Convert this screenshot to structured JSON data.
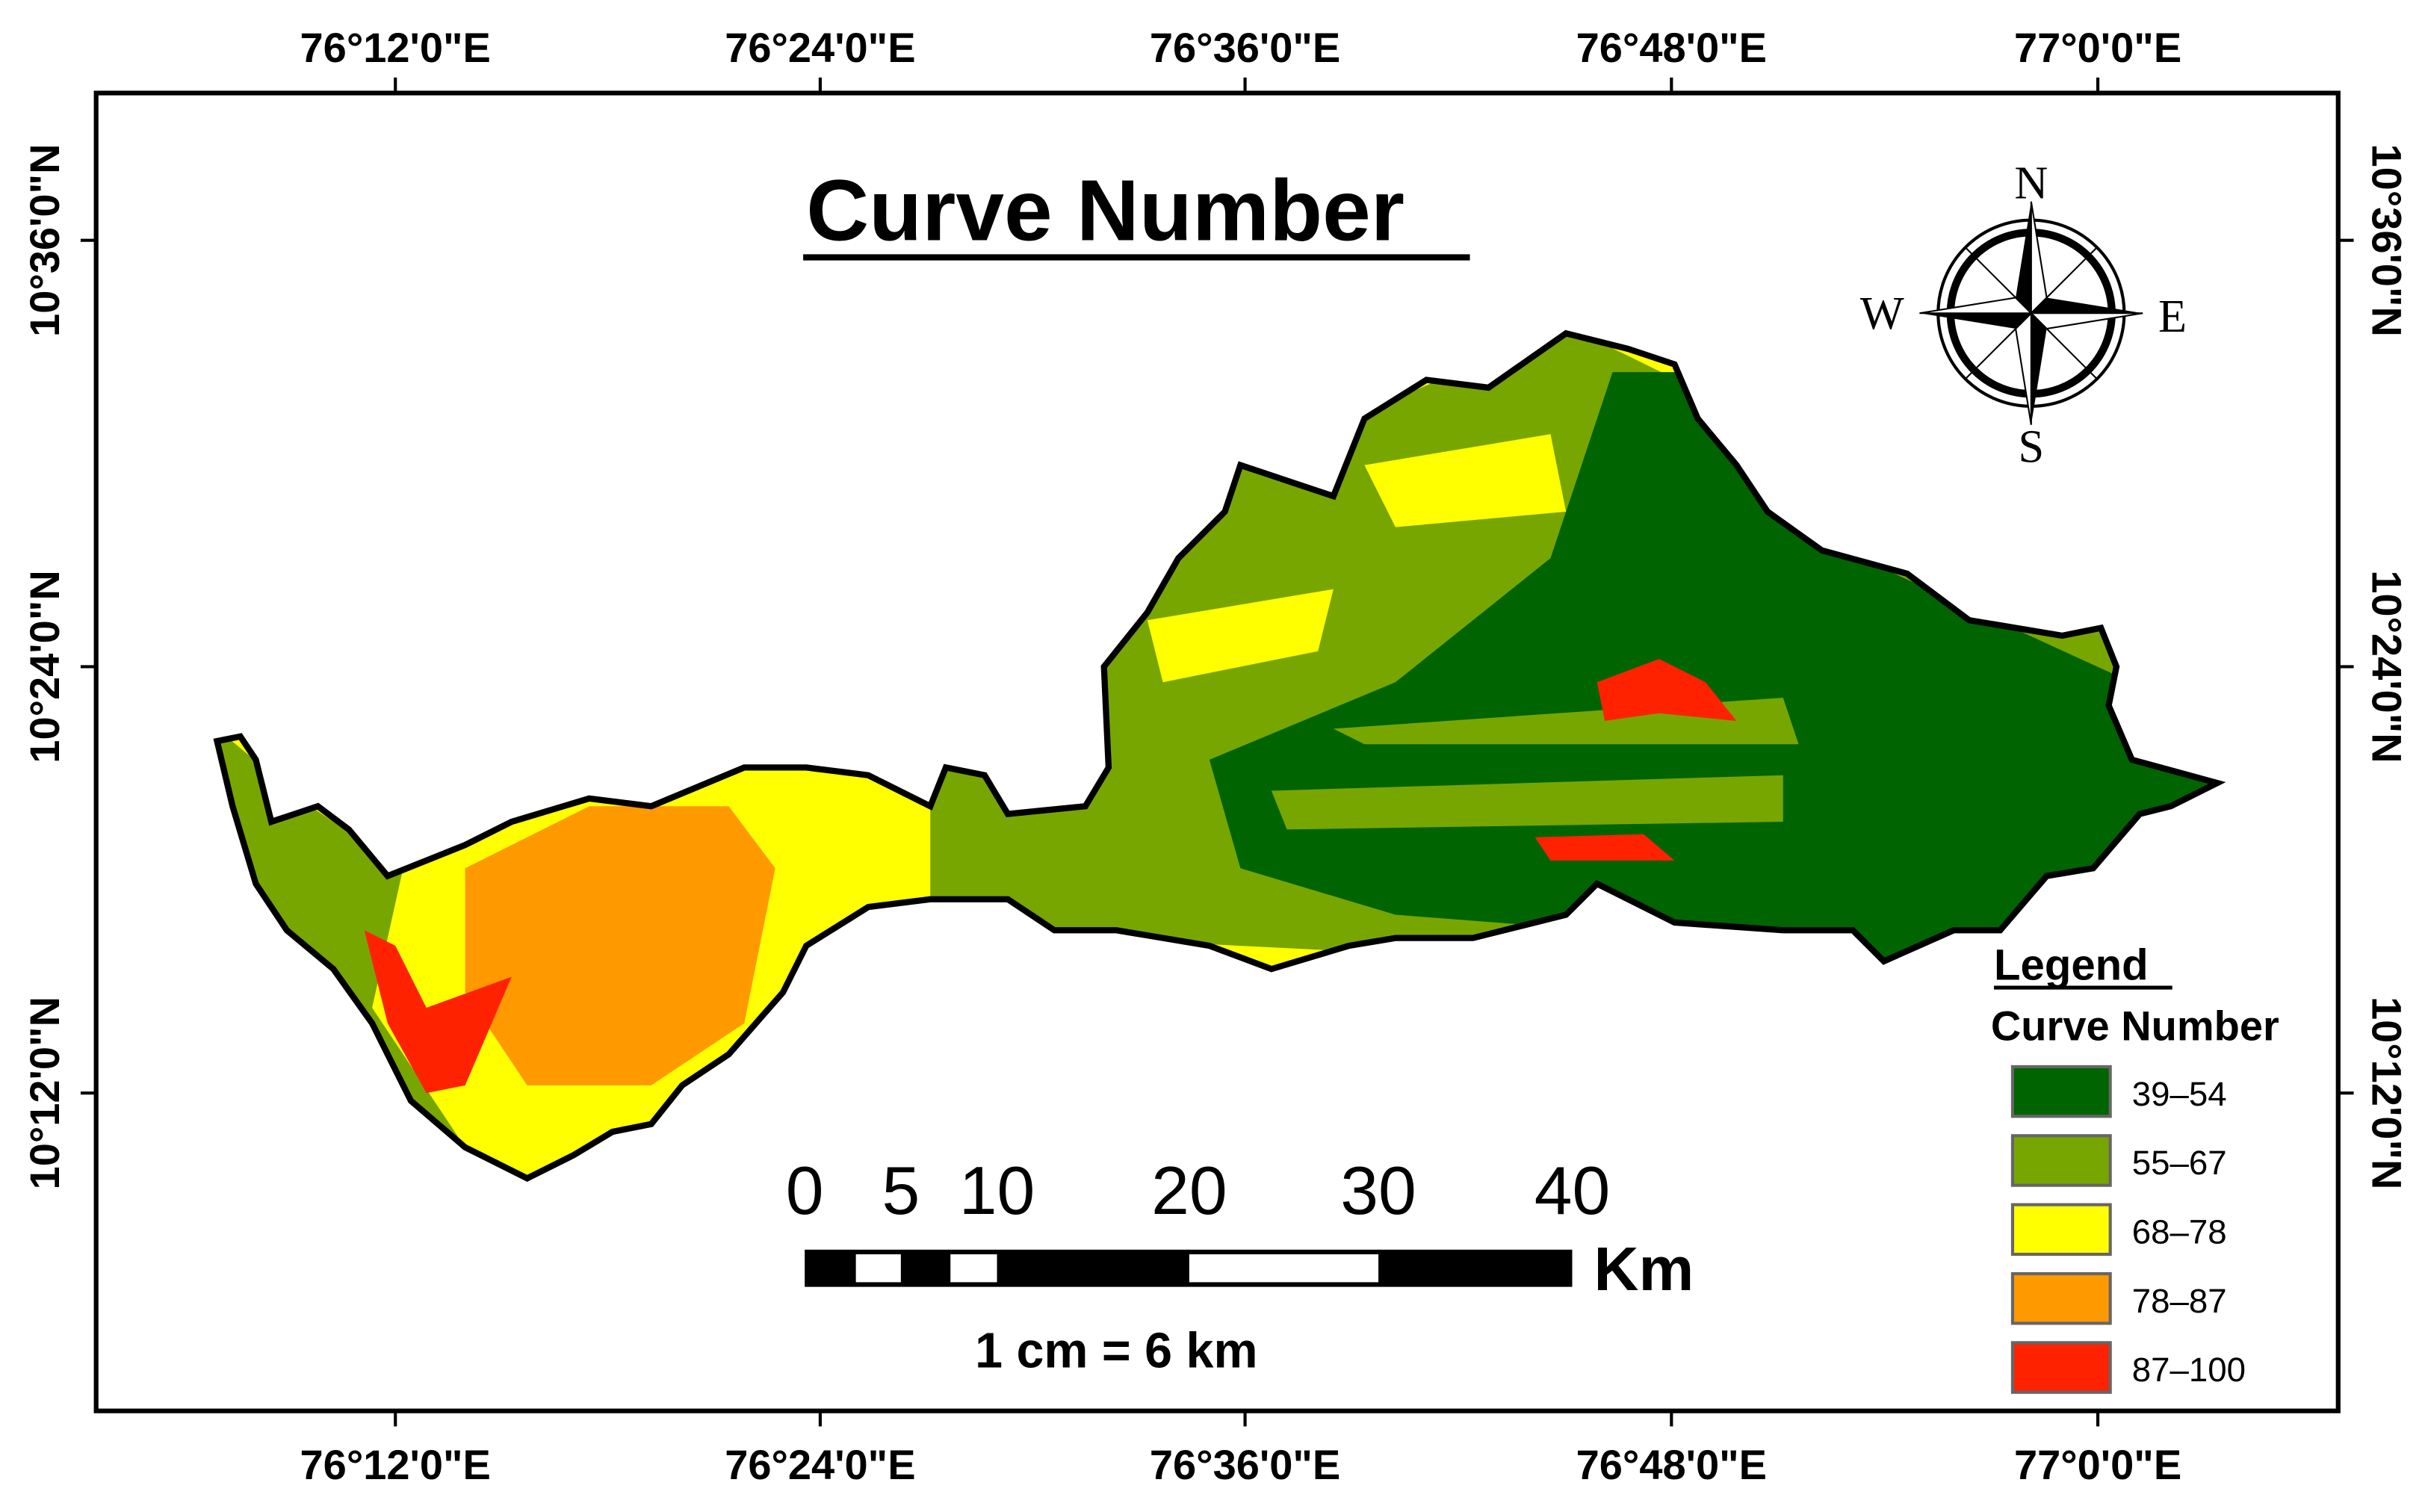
{
  "title": "Curve Number",
  "longitude_labels": [
    "76°12'0\"E",
    "76°24'0\"E",
    "76°36'0\"E",
    "76°48'0\"E",
    "77°0'0\"E"
  ],
  "latitude_labels": [
    "10°36'0\"N",
    "10°24'0\"N",
    "10°12'0\"N"
  ],
  "compass": {
    "north": "N",
    "south": "S",
    "east": "E",
    "west": "W"
  },
  "legend": {
    "title": "Legend",
    "subtitle": "Curve Number",
    "items": [
      {
        "label": "39–54",
        "color": "#006400"
      },
      {
        "label": "55–67",
        "color": "#78a600"
      },
      {
        "label": "68–78",
        "color": "#ffff00"
      },
      {
        "label": "78–87",
        "color": "#ff9900"
      },
      {
        "label": "87–100",
        "color": "#ff2200"
      }
    ]
  },
  "scale_bar": {
    "labels": [
      "0",
      "5",
      "10",
      "20",
      "30",
      "40"
    ],
    "unit": "Km",
    "note": "1 cm = 6 km"
  }
}
